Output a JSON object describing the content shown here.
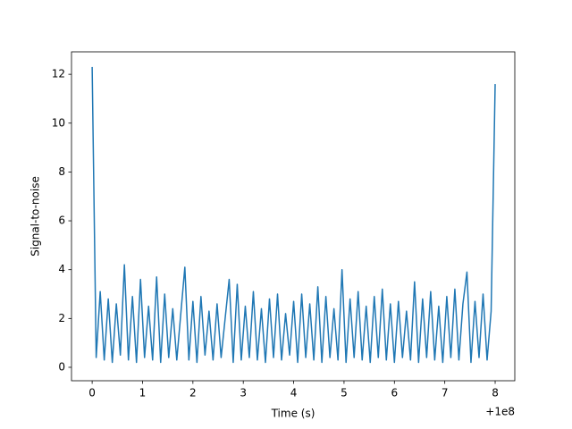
{
  "chart_data": {
    "type": "line",
    "xlabel": "Time (s)",
    "ylabel": "Signal-to-noise",
    "x_offset_label": "+1e8",
    "color": "#1f77b4",
    "xlim": [
      -0.41,
      8.39
    ],
    "ylim": [
      -0.55,
      12.92
    ],
    "xticks": [
      0,
      1,
      2,
      3,
      4,
      5,
      6,
      7,
      8
    ],
    "yticks": [
      0,
      2,
      4,
      6,
      8,
      10,
      12
    ],
    "x": [
      0,
      0.08,
      0.16,
      0.24,
      0.32,
      0.4,
      0.48,
      0.56,
      0.64,
      0.72,
      0.8,
      0.88,
      0.96,
      1.04,
      1.12,
      1.2,
      1.28,
      1.36,
      1.44,
      1.52,
      1.6,
      1.68,
      1.76,
      1.84,
      1.92,
      2.0,
      2.08,
      2.16,
      2.24,
      2.32,
      2.4,
      2.48,
      2.56,
      2.64,
      2.72,
      2.8,
      2.88,
      2.96,
      3.04,
      3.12,
      3.2,
      3.28,
      3.36,
      3.44,
      3.52,
      3.6,
      3.68,
      3.76,
      3.84,
      3.92,
      4.0,
      4.08,
      4.16,
      4.24,
      4.32,
      4.4,
      4.48,
      4.56,
      4.64,
      4.72,
      4.8,
      4.88,
      4.96,
      5.04,
      5.12,
      5.2,
      5.28,
      5.36,
      5.44,
      5.52,
      5.6,
      5.68,
      5.76,
      5.84,
      5.92,
      6.0,
      6.08,
      6.16,
      6.24,
      6.32,
      6.4,
      6.48,
      6.56,
      6.64,
      6.72,
      6.8,
      6.88,
      6.96,
      7.04,
      7.12,
      7.2,
      7.28,
      7.36,
      7.44,
      7.52,
      7.6,
      7.68,
      7.76,
      7.84,
      7.92,
      8.0
    ],
    "values": [
      12.3,
      0.4,
      3.1,
      0.3,
      2.8,
      0.2,
      2.6,
      0.5,
      4.2,
      0.3,
      2.9,
      0.2,
      3.6,
      0.4,
      2.5,
      0.3,
      3.7,
      0.2,
      3.0,
      0.4,
      2.4,
      0.3,
      2.2,
      4.1,
      0.3,
      2.7,
      0.2,
      2.9,
      0.5,
      2.3,
      0.3,
      2.6,
      0.4,
      2.0,
      3.6,
      0.2,
      3.4,
      0.3,
      2.5,
      0.4,
      3.1,
      0.3,
      2.4,
      0.2,
      2.8,
      0.4,
      3.0,
      0.3,
      2.2,
      0.5,
      2.7,
      0.2,
      3.0,
      0.4,
      2.6,
      0.3,
      3.3,
      0.2,
      2.9,
      0.4,
      2.4,
      0.3,
      4.0,
      0.2,
      2.8,
      0.4,
      3.1,
      0.3,
      2.5,
      0.2,
      2.9,
      0.4,
      3.2,
      0.3,
      2.6,
      0.2,
      2.7,
      0.4,
      2.3,
      0.3,
      3.5,
      0.2,
      2.8,
      0.4,
      3.1,
      0.3,
      2.5,
      0.2,
      2.9,
      0.4,
      3.2,
      0.3,
      2.6,
      3.9,
      0.2,
      2.7,
      0.4,
      3.0,
      0.3,
      2.3,
      11.6
    ]
  }
}
